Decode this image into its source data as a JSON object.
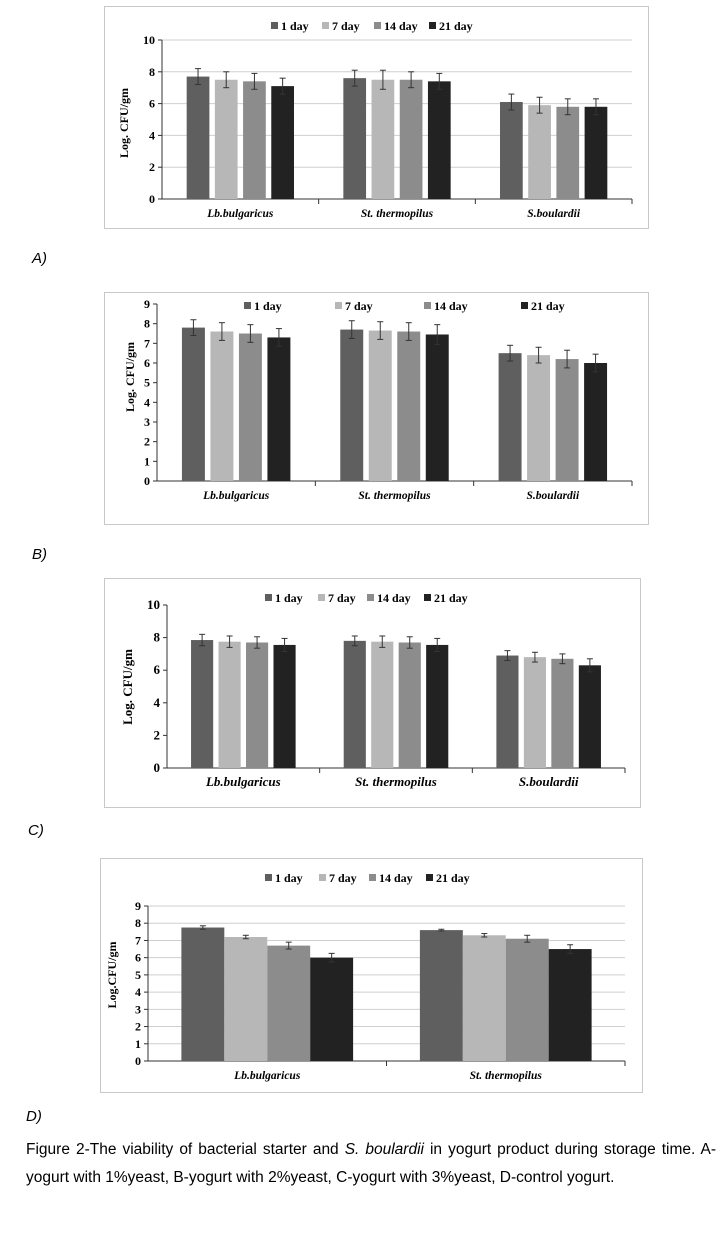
{
  "colors": [
    "#5f5f5f",
    "#b7b7b7",
    "#8c8c8c",
    "#222222"
  ],
  "chart_data": [
    {
      "type": "bar",
      "panel_label": "A)",
      "ylabel": "Log. CFU/gm",
      "ylim": [
        0,
        10
      ],
      "yticks": [
        "0",
        "2",
        "4",
        "6",
        "8",
        "10"
      ],
      "grid": true,
      "legend": "top",
      "categories": [
        "Lb.bulgaricus",
        "St. thermopilus",
        "S.boulardii"
      ],
      "series": [
        {
          "name": "1 day",
          "values": [
            7.7,
            7.6,
            6.1
          ],
          "errors": [
            0.5,
            0.5,
            0.5
          ]
        },
        {
          "name": "7 day",
          "values": [
            7.5,
            7.5,
            5.9
          ],
          "errors": [
            0.5,
            0.6,
            0.5
          ]
        },
        {
          "name": "14 day",
          "values": [
            7.4,
            7.5,
            5.8
          ],
          "errors": [
            0.5,
            0.5,
            0.5
          ]
        },
        {
          "name": "21 day",
          "values": [
            7.1,
            7.4,
            5.8
          ],
          "errors": [
            0.5,
            0.5,
            0.5
          ]
        }
      ]
    },
    {
      "type": "bar",
      "panel_label": "B)",
      "ylabel": "Log. CFU/gm",
      "ylim": [
        0,
        9
      ],
      "yticks": [
        "0",
        "1",
        "2",
        "3",
        "4",
        "5",
        "6",
        "7",
        "8",
        "9"
      ],
      "grid": false,
      "legend": "top",
      "categories": [
        "Lb.bulgaricus",
        "St. thermopilus",
        "S.boulardii"
      ],
      "series": [
        {
          "name": "1 day",
          "values": [
            7.8,
            7.7,
            6.5
          ],
          "errors": [
            0.4,
            0.45,
            0.4
          ]
        },
        {
          "name": "7 day",
          "values": [
            7.6,
            7.65,
            6.4
          ],
          "errors": [
            0.45,
            0.45,
            0.4
          ]
        },
        {
          "name": "14 day",
          "values": [
            7.5,
            7.6,
            6.2
          ],
          "errors": [
            0.45,
            0.45,
            0.45
          ]
        },
        {
          "name": "21 day",
          "values": [
            7.3,
            7.45,
            6.0
          ],
          "errors": [
            0.45,
            0.5,
            0.45
          ]
        }
      ]
    },
    {
      "type": "bar",
      "panel_label": "C)",
      "ylabel": "Log. CFU/gm",
      "ylim": [
        0,
        10
      ],
      "yticks": [
        "0",
        "2",
        "4",
        "6",
        "8",
        "10"
      ],
      "grid": false,
      "legend": "top",
      "categories": [
        "Lb.bulgaricus",
        "St. thermopilus",
        "S.boulardii"
      ],
      "series": [
        {
          "name": "1 day",
          "values": [
            7.85,
            7.8,
            6.9
          ],
          "errors": [
            0.35,
            0.3,
            0.3
          ]
        },
        {
          "name": "7 day",
          "values": [
            7.75,
            7.75,
            6.8
          ],
          "errors": [
            0.35,
            0.35,
            0.3
          ]
        },
        {
          "name": "14 day",
          "values": [
            7.7,
            7.7,
            6.7
          ],
          "errors": [
            0.35,
            0.35,
            0.3
          ]
        },
        {
          "name": "21 day",
          "values": [
            7.55,
            7.55,
            6.3
          ],
          "errors": [
            0.4,
            0.4,
            0.4
          ]
        }
      ]
    },
    {
      "type": "bar",
      "panel_label": "D)",
      "ylabel": "Log.CFU/gm",
      "ylim": [
        0,
        9
      ],
      "yticks": [
        "0",
        "1",
        "2",
        "3",
        "4",
        "5",
        "6",
        "7",
        "8",
        "9"
      ],
      "grid": true,
      "legend": "top",
      "categories": [
        "Lb.bulgaricus",
        "St. thermopilus"
      ],
      "series": [
        {
          "name": "1 day",
          "values": [
            7.75,
            7.6
          ],
          "errors": [
            0.1,
            0.05
          ]
        },
        {
          "name": "7 day",
          "values": [
            7.2,
            7.3
          ],
          "errors": [
            0.1,
            0.1
          ]
        },
        {
          "name": "14 day",
          "values": [
            6.7,
            7.1
          ],
          "errors": [
            0.2,
            0.2
          ]
        },
        {
          "name": "21 day",
          "values": [
            6.0,
            6.5
          ],
          "errors": [
            0.25,
            0.25
          ]
        }
      ]
    }
  ],
  "caption": {
    "part1": "Figure 2-The viability of bacterial starter and ",
    "italic": "S. boulardii",
    "part2": " in yogurt product during storage time. A-yogurt with 1%yeast, B-yogurt with 2%yeast, C-yogurt with 3%yeast, D-control yogurt."
  }
}
